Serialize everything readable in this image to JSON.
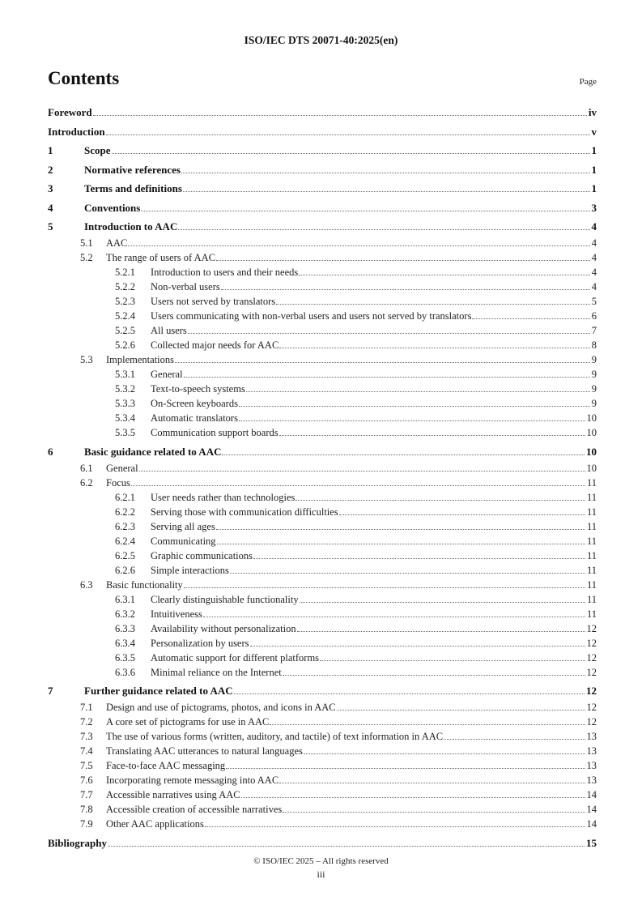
{
  "document": {
    "header_title": "ISO/IEC DTS 20071-40:2025(en)",
    "footer": {
      "copyright": "© ISO/IEC 2025 – All rights reserved",
      "page_number": "iii"
    }
  },
  "contents": {
    "title": "Contents",
    "page_column_label": "Page",
    "entries": [
      {
        "level": 0,
        "num": "",
        "title": "Foreword",
        "page": "iv"
      },
      {
        "level": 0,
        "num": "",
        "title": "Introduction",
        "page": "v"
      },
      {
        "level": 1,
        "num": "1",
        "title": "Scope",
        "page": "1"
      },
      {
        "level": 1,
        "num": "2",
        "title": "Normative references",
        "page": "1"
      },
      {
        "level": 1,
        "num": "3",
        "title": "Terms and definitions",
        "page": "1"
      },
      {
        "level": 1,
        "num": "4",
        "title": "Conventions",
        "page": "3"
      },
      {
        "level": 1,
        "num": "5",
        "title": "Introduction to AAC",
        "page": "4"
      },
      {
        "level": 2,
        "num": "5.1",
        "title": "AAC",
        "page": "4"
      },
      {
        "level": 2,
        "num": "5.2",
        "title": "The range of users of AAC",
        "page": "4"
      },
      {
        "level": 3,
        "num": "5.2.1",
        "title": "Introduction to users and their needs",
        "page": "4"
      },
      {
        "level": 3,
        "num": "5.2.2",
        "title": "Non-verbal users",
        "page": "4"
      },
      {
        "level": 3,
        "num": "5.2.3",
        "title": "Users not served by translators",
        "page": "5"
      },
      {
        "level": 3,
        "num": "5.2.4",
        "title": "Users communicating with non-verbal users and users not served by translators",
        "page": "6"
      },
      {
        "level": 3,
        "num": "5.2.5",
        "title": "All users",
        "page": "7"
      },
      {
        "level": 3,
        "num": "5.2.6",
        "title": "Collected major needs for AAC",
        "page": "8"
      },
      {
        "level": 2,
        "num": "5.3",
        "title": "Implementations",
        "page": "9"
      },
      {
        "level": 3,
        "num": "5.3.1",
        "title": "General",
        "page": "9"
      },
      {
        "level": 3,
        "num": "5.3.2",
        "title": "Text-to-speech systems",
        "page": "9"
      },
      {
        "level": 3,
        "num": "5.3.3",
        "title": "On-Screen keyboards",
        "page": "9"
      },
      {
        "level": 3,
        "num": "5.3.4",
        "title": "Automatic translators",
        "page": "10"
      },
      {
        "level": 3,
        "num": "5.3.5",
        "title": "Communication support boards",
        "page": "10"
      },
      {
        "level": 1,
        "num": "6",
        "title": "Basic guidance related to AAC",
        "page": "10"
      },
      {
        "level": 2,
        "num": "6.1",
        "title": "General",
        "page": "10"
      },
      {
        "level": 2,
        "num": "6.2",
        "title": "Focus",
        "page": "11"
      },
      {
        "level": 3,
        "num": "6.2.1",
        "title": "User needs rather than technologies",
        "page": "11"
      },
      {
        "level": 3,
        "num": "6.2.2",
        "title": "Serving those with communication difficulties",
        "page": "11"
      },
      {
        "level": 3,
        "num": "6.2.3",
        "title": "Serving all ages",
        "page": "11"
      },
      {
        "level": 3,
        "num": "6.2.4",
        "title": "Communicating",
        "page": "11"
      },
      {
        "level": 3,
        "num": "6.2.5",
        "title": "Graphic communications",
        "page": "11"
      },
      {
        "level": 3,
        "num": "6.2.6",
        "title": "Simple interactions",
        "page": "11"
      },
      {
        "level": 2,
        "num": "6.3",
        "title": "Basic functionality",
        "page": "11"
      },
      {
        "level": 3,
        "num": "6.3.1",
        "title": "Clearly distinguishable functionality",
        "page": "11"
      },
      {
        "level": 3,
        "num": "6.3.2",
        "title": "Intuitiveness",
        "page": "11"
      },
      {
        "level": 3,
        "num": "6.3.3",
        "title": "Availability without personalization",
        "page": "12"
      },
      {
        "level": 3,
        "num": "6.3.4",
        "title": "Personalization by users",
        "page": "12"
      },
      {
        "level": 3,
        "num": "6.3.5",
        "title": "Automatic support for different platforms",
        "page": "12"
      },
      {
        "level": 3,
        "num": "6.3.6",
        "title": "Minimal reliance on the Internet",
        "page": "12"
      },
      {
        "level": 1,
        "num": "7",
        "title": "Further guidance related to AAC",
        "page": "12"
      },
      {
        "level": 2,
        "num": "7.1",
        "title": "Design and use of pictograms, photos, and icons in AAC",
        "page": "12"
      },
      {
        "level": 2,
        "num": "7.2",
        "title": "A core set of pictograms for use in AAC",
        "page": "12"
      },
      {
        "level": 2,
        "num": "7.3",
        "title": "The use of various forms (written, auditory, and tactile) of text information in AAC",
        "page": "13"
      },
      {
        "level": 2,
        "num": "7.4",
        "title": "Translating AAC utterances to natural languages",
        "page": "13"
      },
      {
        "level": 2,
        "num": "7.5",
        "title": "Face-to-face AAC messaging",
        "page": "13"
      },
      {
        "level": 2,
        "num": "7.6",
        "title": "Incorporating remote messaging into AAC",
        "page": "13"
      },
      {
        "level": 2,
        "num": "7.7",
        "title": "Accessible narratives using AAC",
        "page": "14"
      },
      {
        "level": 2,
        "num": "7.8",
        "title": "Accessible creation of accessible narratives",
        "page": "14"
      },
      {
        "level": 2,
        "num": "7.9",
        "title": "Other AAC applications",
        "page": "14"
      },
      {
        "level": 0,
        "num": "",
        "title": "Bibliography",
        "page": "15"
      }
    ]
  }
}
